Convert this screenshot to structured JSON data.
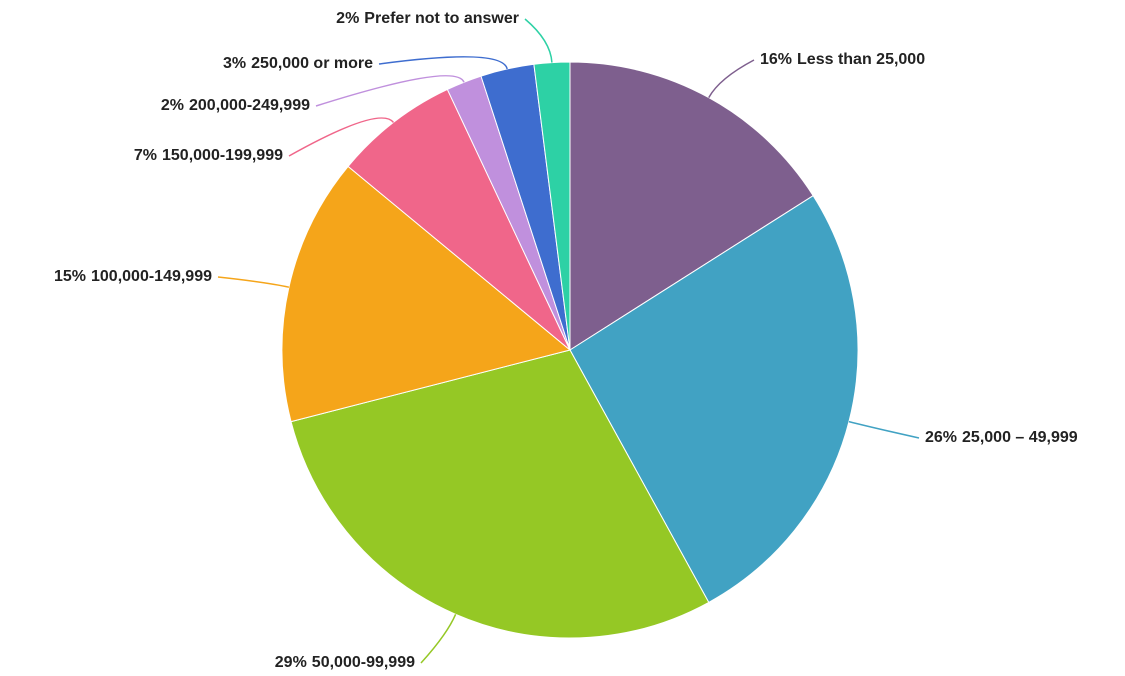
{
  "chart_data": {
    "type": "pie",
    "categories": [
      "Less than 25,000",
      "25,000 – 49,999",
      "50,000-99,999",
      "100,000-149,999",
      "150,000-199,999",
      "200,000-249,999",
      "250,000 or more",
      "Prefer not to answer"
    ],
    "values": [
      16,
      26,
      29,
      15,
      7,
      2,
      3,
      2
    ],
    "value_labels": [
      "16%",
      "26%",
      "29%",
      "15%",
      "7%",
      "2%",
      "3%",
      "2%"
    ],
    "colors": [
      "#7e5f8e",
      "#41a2c3",
      "#95c825",
      "#f5a51a",
      "#f0668a",
      "#c090dd",
      "#3e6dcf",
      "#2dd1a5"
    ]
  }
}
